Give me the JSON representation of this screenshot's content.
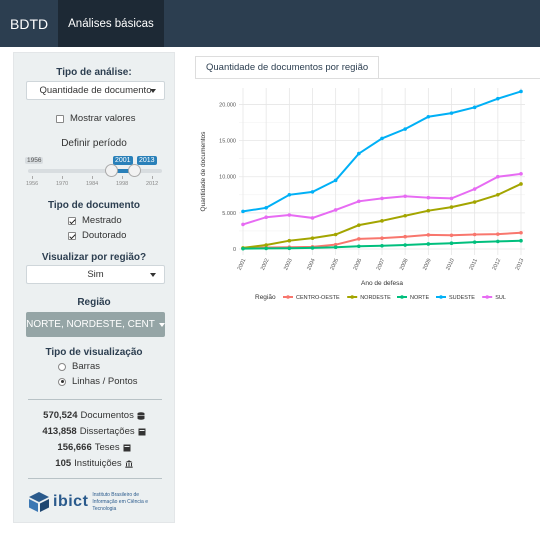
{
  "navbar": {
    "brand": "BDTD",
    "tab_active": "Análises básicas"
  },
  "sidebar": {
    "analysis_type_label": "Tipo de análise:",
    "analysis_type_value": "Quantidade de documento",
    "show_values_label": "Mostrar valores",
    "show_values_checked": false,
    "period_label": "Definir período",
    "period_min": "1956",
    "period_from": "2001",
    "period_to": "2013",
    "period_ticks": [
      "1956",
      "1970",
      "1984",
      "1998",
      "2012"
    ],
    "doc_type_label": "Tipo de documento",
    "doc_types": [
      {
        "label": "Mestrado",
        "checked": true
      },
      {
        "label": "Doutorado",
        "checked": true
      }
    ],
    "by_region_label": "Visualizar por região?",
    "by_region_value": "Sim",
    "region_label": "Região",
    "region_value": "NORTE, NORDESTE, CENT",
    "viz_type_label": "Tipo de visualização",
    "viz_types": [
      {
        "label": "Barras",
        "selected": false
      },
      {
        "label": "Linhas / Pontos",
        "selected": true
      }
    ],
    "stats": [
      {
        "number": "570,524",
        "label": "Documentos",
        "icon": "database-icon"
      },
      {
        "number": "413,858",
        "label": "Dissertações",
        "icon": "book-icon"
      },
      {
        "number": "156,666",
        "label": "Teses",
        "icon": "book-icon"
      },
      {
        "number": "105",
        "label": "Instituições",
        "icon": "institution-icon"
      }
    ],
    "logo_text": "ibict",
    "logo_subtext": "Instituto Brasileiro de Informação em Ciência e Tecnologia"
  },
  "main": {
    "tab_label": "Quantidade de documentos por região"
  },
  "chart_data": {
    "type": "line",
    "xlabel": "Ano de defesa",
    "ylabel": "Quantidade de documentos",
    "x": [
      "2001",
      "2002",
      "2003",
      "2004",
      "2005",
      "2006",
      "2007",
      "2008",
      "2009",
      "2010",
      "2011",
      "2012",
      "2013"
    ],
    "ylim": [
      0,
      22000
    ],
    "yticks": [
      0,
      5000,
      10000,
      15000,
      20000
    ],
    "ytick_labels": [
      "0",
      "5.000",
      "10.000",
      "15.000",
      "20.000"
    ],
    "legend_title": "Região",
    "legend_position": "bottom",
    "series": [
      {
        "name": "CENTRO-OESTE",
        "color": "#F8766D",
        "values": [
          100,
          200,
          250,
          300,
          600,
          1400,
          1500,
          1700,
          1950,
          1900,
          2000,
          2050,
          2250
        ]
      },
      {
        "name": "NORDESTE",
        "color": "#A3A500",
        "values": [
          150,
          550,
          1150,
          1500,
          2000,
          3300,
          3900,
          4600,
          5300,
          5800,
          6500,
          7500,
          9000
        ]
      },
      {
        "name": "NORTE",
        "color": "#00BF7D",
        "values": [
          50,
          80,
          100,
          150,
          250,
          380,
          450,
          550,
          700,
          800,
          950,
          1050,
          1150
        ]
      },
      {
        "name": "SUDESTE",
        "color": "#00B0F6",
        "values": [
          5200,
          5700,
          7500,
          7900,
          9500,
          13200,
          15300,
          16600,
          18300,
          18800,
          19600,
          20800,
          21800
        ]
      },
      {
        "name": "SUL",
        "color": "#E76BF3",
        "values": [
          3400,
          4400,
          4700,
          4300,
          5400,
          6600,
          7000,
          7300,
          7100,
          7000,
          8300,
          10000,
          10400
        ]
      }
    ],
    "grid": true
  }
}
